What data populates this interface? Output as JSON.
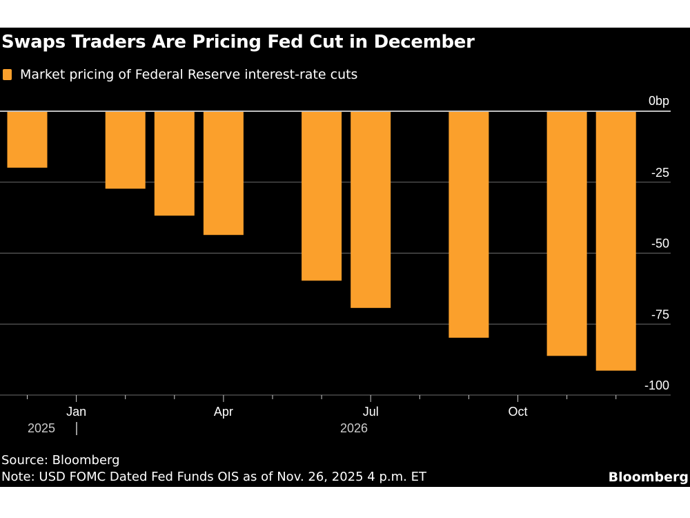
{
  "title": "Swaps Traders Are Pricing Fed Cut in December",
  "source": "Source: Bloomberg",
  "note": "Note: USD FOMC Dated Fed Funds OIS as of Nov. 26, 2025 4 p.m. ET",
  "brand": "Bloomberg",
  "chart_data": {
    "type": "bar",
    "legend": [
      {
        "name": "Market pricing of Federal Reserve interest-rate cuts",
        "color": "#fba02c"
      }
    ],
    "series": [
      {
        "name": "Market pricing of Federal Reserve interest-rate cuts",
        "x": [
          "2025-12",
          "2026-02",
          "2026-03",
          "2026-04",
          "2026-06",
          "2026-07",
          "2026-09",
          "2026-11",
          "2026-12"
        ],
        "values": [
          -19.9,
          -27.3,
          -36.8,
          -43.6,
          -59.7,
          -69.3,
          -79.8,
          -86.2,
          -91.4
        ]
      }
    ],
    "ylim": [
      -100,
      0
    ],
    "yticks": [
      0,
      -25,
      -50,
      -75,
      -100
    ],
    "ytick_labels": [
      "0bp",
      "-25",
      "-50",
      "-75",
      "-100"
    ],
    "xrange": [
      "2025-11",
      "2026-12"
    ],
    "xtick_labels": [
      {
        "month": "2026-01",
        "label": "Jan"
      },
      {
        "month": "2026-04",
        "label": "Apr"
      },
      {
        "month": "2026-07",
        "label": "Jul"
      },
      {
        "month": "2026-10",
        "label": "Oct"
      }
    ],
    "year_labels": [
      "2025",
      "2026"
    ],
    "grid": true,
    "axis_side": "right",
    "bar_color": "#fba02c",
    "background": "#000000"
  }
}
